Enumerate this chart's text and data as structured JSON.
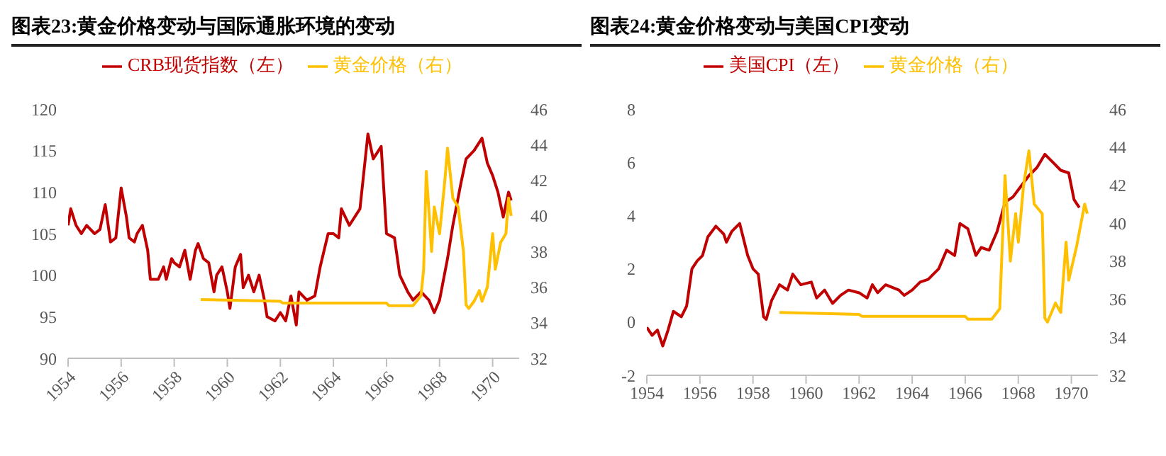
{
  "chart_data": [
    {
      "type": "line",
      "title": "图表23:黄金价格变动与国际通胀环境的变动",
      "xlim": [
        1954,
        1971
      ],
      "xticks": [
        1954,
        1956,
        1958,
        1960,
        1962,
        1964,
        1966,
        1968,
        1970
      ],
      "ylim": [
        90,
        120
      ],
      "yticks": [
        90,
        95,
        100,
        105,
        110,
        115,
        120
      ],
      "y2lim": [
        32,
        46
      ],
      "y2ticks": [
        32,
        34,
        36,
        38,
        40,
        42,
        44,
        46
      ],
      "grid": false,
      "legend": "top",
      "marker": "none",
      "line_style": "solid",
      "series": [
        {
          "name": "CRB现货指数（左）",
          "color": "#c00000",
          "x": [
            1954.0,
            1954.1,
            1954.3,
            1954.5,
            1954.7,
            1955.0,
            1955.2,
            1955.4,
            1955.6,
            1955.8,
            1956.0,
            1956.2,
            1956.3,
            1956.5,
            1956.6,
            1956.8,
            1957.0,
            1957.1,
            1957.4,
            1957.6,
            1957.7,
            1957.9,
            1958.0,
            1958.2,
            1958.4,
            1958.6,
            1958.8,
            1958.9,
            1959.1,
            1959.3,
            1959.5,
            1959.6,
            1959.8,
            1960.0,
            1960.1,
            1960.3,
            1960.5,
            1960.6,
            1960.8,
            1961.0,
            1961.2,
            1961.4,
            1961.5,
            1961.8,
            1962.0,
            1962.2,
            1962.4,
            1962.6,
            1962.7,
            1963.0,
            1963.3,
            1963.5,
            1963.8,
            1964.0,
            1964.2,
            1964.3,
            1964.6,
            1965.0,
            1965.2,
            1965.3,
            1965.5,
            1965.8,
            1966.0,
            1966.3,
            1966.5,
            1966.8,
            1967.0,
            1967.3,
            1967.6,
            1967.8,
            1968.0,
            1968.3,
            1968.5,
            1968.8,
            1969.0,
            1969.3,
            1969.6,
            1969.8,
            1970.0,
            1970.2,
            1970.4,
            1970.6,
            1970.7
          ],
          "values": [
            106,
            108,
            106,
            105,
            106,
            105,
            105.5,
            108.5,
            104,
            104.5,
            110.5,
            107,
            104.5,
            104,
            105,
            106,
            103,
            99.5,
            99.5,
            101,
            99.5,
            102,
            101.5,
            101,
            103,
            99.5,
            103,
            103.8,
            102,
            101.5,
            98,
            100,
            101,
            98,
            96,
            101,
            102.5,
            98.5,
            100,
            98,
            100,
            97,
            95,
            94.5,
            95.5,
            94.5,
            97.5,
            94,
            98,
            97,
            97.5,
            101,
            105,
            105,
            104.5,
            108,
            106,
            108,
            114,
            117,
            114,
            115.5,
            105,
            104.5,
            100,
            98,
            97,
            98,
            97,
            95.5,
            97,
            102,
            106,
            111,
            114,
            115,
            116.5,
            113.5,
            112,
            110,
            107,
            110,
            109
          ]
        },
        {
          "name": "黄金价格（右）",
          "color": "#ffc000",
          "axis": "y2",
          "x": [
            1959.0,
            1962.0,
            1962.1,
            1966.0,
            1966.1,
            1967.0,
            1967.3,
            1967.4,
            1967.5,
            1967.7,
            1967.8,
            1968.0,
            1968.2,
            1968.3,
            1968.5,
            1968.7,
            1968.9,
            1969.0,
            1969.1,
            1969.3,
            1969.5,
            1969.6,
            1969.8,
            1970.0,
            1970.1,
            1970.3,
            1970.5,
            1970.6,
            1970.7
          ],
          "values": [
            35.3,
            35.2,
            35.1,
            35.1,
            34.95,
            34.95,
            35.5,
            37,
            42.5,
            38,
            40.5,
            39,
            42,
            43.8,
            41,
            40.5,
            38,
            35,
            34.8,
            35.2,
            35.8,
            35.2,
            36,
            39,
            37,
            38.5,
            39,
            41,
            40
          ]
        }
      ]
    },
    {
      "type": "line",
      "title": "图表24:黄金价格变动与美国CPI变动",
      "xlim": [
        1954,
        1971
      ],
      "xticks": [
        1954,
        1956,
        1958,
        1960,
        1962,
        1964,
        1966,
        1968,
        1970
      ],
      "ylim": [
        -2,
        8
      ],
      "yticks": [
        -2,
        0,
        2,
        4,
        6,
        8
      ],
      "y2lim": [
        32,
        46
      ],
      "y2ticks": [
        32,
        34,
        36,
        38,
        40,
        42,
        44,
        46
      ],
      "grid": false,
      "legend": "top",
      "marker": "none",
      "line_style": "solid",
      "series": [
        {
          "name": "美国CPI（左）",
          "color": "#c00000",
          "x": [
            1954.0,
            1954.2,
            1954.4,
            1954.6,
            1954.8,
            1955.0,
            1955.3,
            1955.5,
            1955.7,
            1955.9,
            1956.1,
            1956.3,
            1956.6,
            1956.9,
            1957.0,
            1957.2,
            1957.5,
            1957.8,
            1958.0,
            1958.2,
            1958.4,
            1958.5,
            1958.7,
            1959.0,
            1959.3,
            1959.5,
            1959.8,
            1960.2,
            1960.4,
            1960.7,
            1961.0,
            1961.3,
            1961.6,
            1962.0,
            1962.3,
            1962.5,
            1962.7,
            1963.0,
            1963.5,
            1963.7,
            1964.0,
            1964.3,
            1964.6,
            1965.0,
            1965.3,
            1965.6,
            1965.8,
            1966.1,
            1966.4,
            1966.6,
            1966.9,
            1967.2,
            1967.5,
            1967.8,
            1968.1,
            1968.4,
            1968.7,
            1969.0,
            1969.3,
            1969.6,
            1969.9,
            1970.1,
            1970.3
          ],
          "values": [
            -0.2,
            -0.5,
            -0.3,
            -0.9,
            -0.3,
            0.4,
            0.2,
            0.6,
            2.0,
            2.3,
            2.5,
            3.2,
            3.6,
            3.3,
            3.0,
            3.4,
            3.7,
            2.5,
            2.0,
            1.8,
            0.2,
            0.1,
            0.8,
            1.4,
            1.2,
            1.8,
            1.4,
            1.5,
            0.9,
            1.2,
            0.7,
            1.0,
            1.2,
            1.1,
            0.9,
            1.4,
            1.1,
            1.4,
            1.2,
            1.0,
            1.2,
            1.5,
            1.6,
            2.0,
            2.7,
            2.5,
            3.7,
            3.5,
            2.5,
            2.8,
            2.7,
            3.4,
            4.5,
            4.7,
            5.1,
            5.5,
            5.8,
            6.3,
            6.0,
            5.7,
            5.6,
            4.6,
            4.3
          ]
        },
        {
          "name": "黄金价格（右）",
          "color": "#ffc000",
          "axis": "y2",
          "x": [
            1959.0,
            1962.0,
            1962.1,
            1966.0,
            1966.1,
            1967.0,
            1967.3,
            1967.5,
            1967.7,
            1967.9,
            1968.0,
            1968.2,
            1968.4,
            1968.6,
            1968.9,
            1969.0,
            1969.1,
            1969.4,
            1969.6,
            1969.8,
            1969.9,
            1970.2,
            1970.5,
            1970.6
          ],
          "values": [
            35.3,
            35.2,
            35.1,
            35.1,
            34.95,
            34.95,
            35.5,
            42.5,
            38,
            40.5,
            39,
            42,
            43.8,
            41,
            40.5,
            35,
            34.8,
            35.8,
            35.3,
            39,
            37,
            38.8,
            41,
            40.5
          ]
        }
      ]
    }
  ]
}
